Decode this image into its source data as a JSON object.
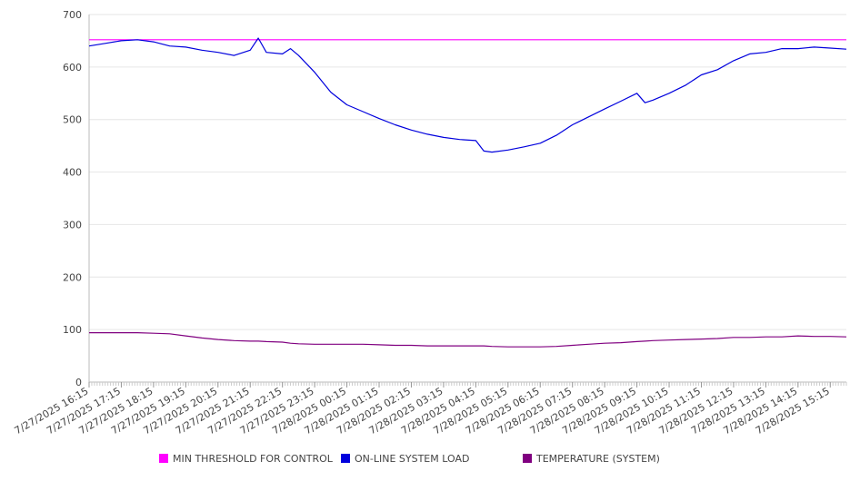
{
  "chart_data": {
    "type": "line",
    "title": "",
    "xlabel": "",
    "ylabel": "",
    "ylim": [
      0,
      700
    ],
    "y_ticks": [
      0,
      100,
      200,
      300,
      400,
      500,
      600,
      700
    ],
    "grid": "horizontal",
    "legend_position": "bottom",
    "x_tick_labels": [
      "7/27/2025 16:15",
      "7/27/2025 17:15",
      "7/27/2025 18:15",
      "7/27/2025 19:15",
      "7/27/2025 20:15",
      "7/27/2025 21:15",
      "7/27/2025 22:15",
      "7/27/2025 23:15",
      "7/28/2025 00:15",
      "7/28/2025 01:15",
      "7/28/2025 02:15",
      "7/28/2025 03:15",
      "7/28/2025 04:15",
      "7/28/2025 05:15",
      "7/28/2025 06:15",
      "7/28/2025 07:15",
      "7/28/2025 08:15",
      "7/28/2025 09:15",
      "7/28/2025 10:15",
      "7/28/2025 11:15",
      "7/28/2025 12:15",
      "7/28/2025 13:15",
      "7/28/2025 14:15",
      "7/28/2025 15:15"
    ],
    "x": [
      "7/27/2025 16:15",
      "7/27/2025 16:45",
      "7/27/2025 17:15",
      "7/27/2025 17:45",
      "7/27/2025 18:15",
      "7/27/2025 18:45",
      "7/27/2025 19:15",
      "7/27/2025 19:45",
      "7/27/2025 20:15",
      "7/27/2025 20:45",
      "7/27/2025 21:15",
      "7/27/2025 21:30",
      "7/27/2025 21:45",
      "7/27/2025 22:15",
      "7/27/2025 22:30",
      "7/27/2025 22:45",
      "7/27/2025 23:15",
      "7/27/2025 23:45",
      "7/28/2025 00:15",
      "7/28/2025 00:45",
      "7/28/2025 01:15",
      "7/28/2025 01:45",
      "7/28/2025 02:15",
      "7/28/2025 02:45",
      "7/28/2025 03:15",
      "7/28/2025 03:45",
      "7/28/2025 04:15",
      "7/28/2025 04:30",
      "7/28/2025 04:45",
      "7/28/2025 05:15",
      "7/28/2025 05:45",
      "7/28/2025 06:15",
      "7/28/2025 06:45",
      "7/28/2025 07:15",
      "7/28/2025 07:45",
      "7/28/2025 08:15",
      "7/28/2025 08:45",
      "7/28/2025 09:15",
      "7/28/2025 09:30",
      "7/28/2025 09:45",
      "7/28/2025 10:15",
      "7/28/2025 10:45",
      "7/28/2025 11:15",
      "7/28/2025 11:45",
      "7/28/2025 12:15",
      "7/28/2025 12:45",
      "7/28/2025 13:15",
      "7/28/2025 13:45",
      "7/28/2025 14:15",
      "7/28/2025 14:45",
      "7/28/2025 15:15",
      "7/28/2025 15:45"
    ],
    "series": [
      {
        "name": "MIN THRESHOLD FOR CONTROL",
        "color": "#ff00ff",
        "values": [
          652,
          652,
          652,
          652,
          652,
          652,
          652,
          652,
          652,
          652,
          652,
          652,
          652,
          652,
          652,
          652,
          652,
          652,
          652,
          652,
          652,
          652,
          652,
          652,
          652,
          652,
          652,
          652,
          652,
          652,
          652,
          652,
          652,
          652,
          652,
          652,
          652,
          652,
          652,
          652,
          652,
          652,
          652,
          652,
          652,
          652,
          652,
          652,
          652,
          652,
          652,
          652
        ]
      },
      {
        "name": "ON-LINE SYSTEM LOAD",
        "color": "#0000dd",
        "values": [
          640,
          645,
          650,
          652,
          648,
          640,
          638,
          632,
          628,
          622,
          632,
          655,
          628,
          625,
          635,
          622,
          590,
          552,
          528,
          515,
          502,
          490,
          480,
          472,
          466,
          462,
          460,
          440,
          438,
          442,
          448,
          455,
          470,
          490,
          505,
          520,
          535,
          550,
          532,
          537,
          550,
          565,
          585,
          595,
          612,
          625,
          628,
          635,
          635,
          638,
          636,
          634
        ]
      },
      {
        "name": "TEMPERATURE (SYSTEM)",
        "color": "#800080",
        "values": [
          94,
          94,
          94,
          94,
          93,
          92,
          88,
          84,
          81,
          79,
          78,
          78,
          77,
          76,
          74,
          73,
          72,
          72,
          72,
          72,
          71,
          70,
          70,
          69,
          69,
          69,
          69,
          69,
          68,
          67,
          67,
          67,
          68,
          70,
          72,
          74,
          75,
          77,
          78,
          79,
          80,
          81,
          82,
          83,
          85,
          85,
          86,
          86,
          88,
          87,
          87,
          86
        ]
      }
    ]
  }
}
